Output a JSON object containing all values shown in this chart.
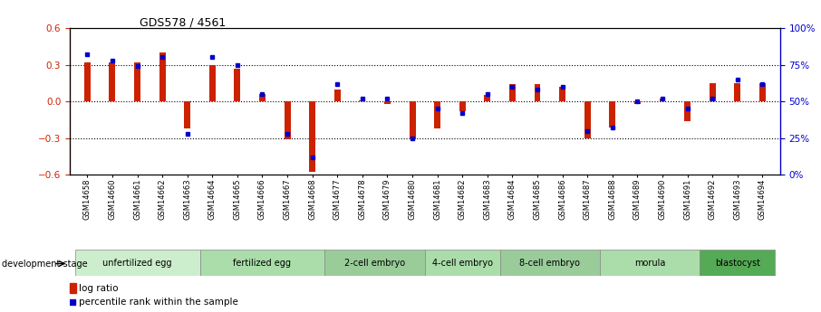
{
  "title": "GDS578 / 4561",
  "samples": [
    "GSM14658",
    "GSM14660",
    "GSM14661",
    "GSM14662",
    "GSM14663",
    "GSM14664",
    "GSM14665",
    "GSM14666",
    "GSM14667",
    "GSM14668",
    "GSM14677",
    "GSM14678",
    "GSM14679",
    "GSM14680",
    "GSM14681",
    "GSM14682",
    "GSM14683",
    "GSM14684",
    "GSM14685",
    "GSM14686",
    "GSM14687",
    "GSM14688",
    "GSM14689",
    "GSM14690",
    "GSM14691",
    "GSM14692",
    "GSM14693",
    "GSM14694"
  ],
  "log_ratio": [
    0.32,
    0.32,
    0.32,
    0.4,
    -0.22,
    0.3,
    0.27,
    0.06,
    -0.31,
    -0.58,
    0.1,
    0.01,
    -0.02,
    -0.31,
    -0.22,
    -0.08,
    0.05,
    0.14,
    0.14,
    0.12,
    -0.3,
    -0.21,
    -0.02,
    0.02,
    -0.16,
    0.15,
    0.15,
    0.15
  ],
  "percentile": [
    82,
    78,
    74,
    80,
    28,
    80,
    75,
    55,
    28,
    12,
    62,
    52,
    52,
    25,
    45,
    42,
    55,
    60,
    58,
    60,
    30,
    32,
    50,
    52,
    45,
    52,
    65,
    62
  ],
  "stages": [
    {
      "name": "unfertilized egg",
      "start": 0,
      "end": 5
    },
    {
      "name": "fertilized egg",
      "start": 5,
      "end": 10
    },
    {
      "name": "2-cell embryo",
      "start": 10,
      "end": 14
    },
    {
      "name": "4-cell embryo",
      "start": 14,
      "end": 17
    },
    {
      "name": "8-cell embryo",
      "start": 17,
      "end": 21
    },
    {
      "name": "morula",
      "start": 21,
      "end": 25
    },
    {
      "name": "blastocyst",
      "start": 25,
      "end": 28
    }
  ],
  "stage_colors": {
    "unfertilized egg": "#cceecc",
    "fertilized egg": "#aaddaa",
    "2-cell embryo": "#99cc99",
    "4-cell embryo": "#aaddaa",
    "8-cell embryo": "#99cc99",
    "morula": "#aaddaa",
    "blastocyst": "#55aa55"
  },
  "ylim_left": [
    -0.6,
    0.6
  ],
  "ylim_right": [
    0,
    100
  ],
  "yticks_left": [
    -0.6,
    -0.3,
    0.0,
    0.3,
    0.6
  ],
  "yticks_right": [
    0,
    25,
    50,
    75,
    100
  ],
  "bar_color": "#cc2200",
  "dot_color": "#0000cc",
  "background_color": "#ffffff",
  "legend_log_ratio": "log ratio",
  "legend_percentile": "percentile rank within the sample",
  "dev_stage_label": "development stage"
}
